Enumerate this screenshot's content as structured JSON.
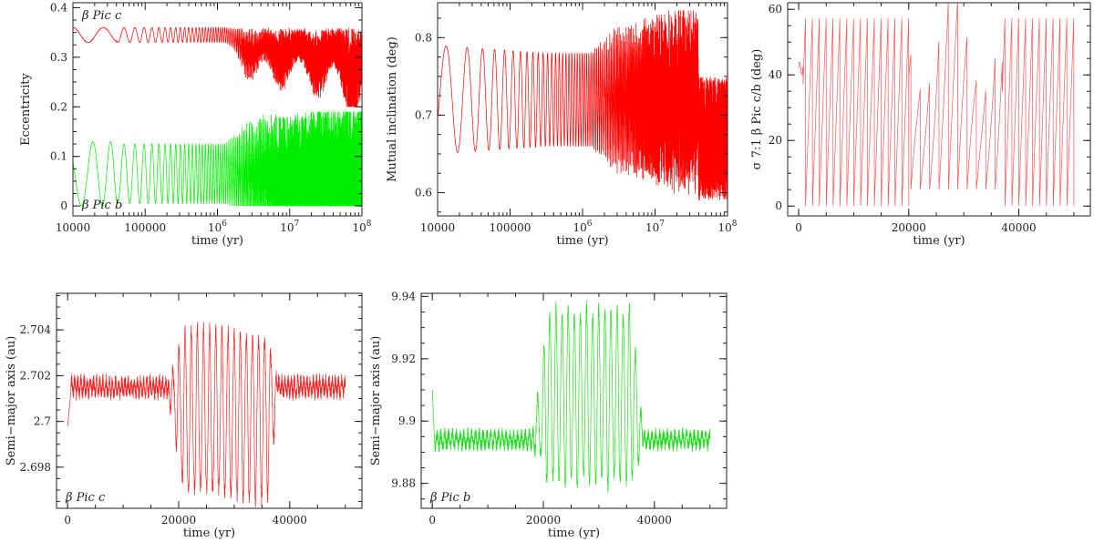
{
  "chart_data": [
    {
      "id": "ecc",
      "type": "line",
      "xscale": "log",
      "xlabel": "time (yr)",
      "ylabel": "Eccentricity",
      "xlim": [
        10000,
        100000000
      ],
      "ylim": [
        -0.02,
        0.41
      ],
      "xticks": [
        {
          "v": 10000,
          "label": "10000"
        },
        {
          "v": 100000,
          "label": "100000"
        },
        {
          "v": 1000000,
          "base": "10",
          "exp": "6"
        },
        {
          "v": 10000000,
          "base": "10",
          "exp": "7"
        },
        {
          "v": 100000000,
          "base": "10",
          "exp": "8"
        }
      ],
      "yticks": [
        {
          "v": 0,
          "label": "0"
        },
        {
          "v": 0.1,
          "label": "0.1"
        },
        {
          "v": 0.2,
          "label": "0.2"
        },
        {
          "v": 0.3,
          "label": "0.3"
        },
        {
          "v": 0.4,
          "label": "0.4"
        }
      ],
      "annotations": [
        {
          "text": "β  Pic  c",
          "pos": "top-left"
        },
        {
          "text": "β  Pic  b",
          "pos": "bottom-left"
        }
      ],
      "series": [
        {
          "color": "#ff0000",
          "model": "ecc_c"
        },
        {
          "color": "#00ee00",
          "model": "ecc_b"
        }
      ]
    },
    {
      "id": "inc",
      "type": "line",
      "xscale": "log",
      "xlabel": "time (yr)",
      "ylabel": "Mutual inclination (deg)",
      "xlim": [
        10000,
        100000000
      ],
      "ylim": [
        0.57,
        0.845
      ],
      "xticks": [
        {
          "v": 10000,
          "label": "10000"
        },
        {
          "v": 100000,
          "label": "100000"
        },
        {
          "v": 1000000,
          "base": "10",
          "exp": "6"
        },
        {
          "v": 10000000,
          "base": "10",
          "exp": "7"
        },
        {
          "v": 100000000,
          "base": "10",
          "exp": "8"
        }
      ],
      "yticks": [
        {
          "v": 0.6,
          "label": "0.6"
        },
        {
          "v": 0.7,
          "label": "0.7"
        },
        {
          "v": 0.8,
          "label": "0.8"
        }
      ],
      "annotations": [],
      "series": [
        {
          "color": "#ff0000",
          "model": "inc"
        }
      ]
    },
    {
      "id": "res",
      "type": "line",
      "xscale": "linear",
      "xlabel": "time (yr)",
      "ylabel": "σ 7:1  β  Pic c/b (deg)",
      "xlim": [
        -2000,
        53000
      ],
      "ylim": [
        -3,
        62
      ],
      "xticks": [
        {
          "v": 0,
          "label": "0"
        },
        {
          "v": 20000,
          "label": "20000"
        },
        {
          "v": 40000,
          "label": "40000"
        }
      ],
      "yticks": [
        {
          "v": 0,
          "label": "0"
        },
        {
          "v": 20,
          "label": "20"
        },
        {
          "v": 40,
          "label": "40"
        },
        {
          "v": 60,
          "label": "60"
        }
      ],
      "annotations": [],
      "series": [
        {
          "color": "#ff5555",
          "model": "res"
        }
      ]
    },
    {
      "id": "ac",
      "type": "line",
      "xscale": "linear",
      "xlabel": "time (yr)",
      "ylabel": "Semi−major axis (au)",
      "xlim": [
        -2000,
        53000
      ],
      "ylim": [
        2.6962,
        2.7056
      ],
      "xticks": [
        {
          "v": 0,
          "label": "0"
        },
        {
          "v": 20000,
          "label": "20000"
        },
        {
          "v": 40000,
          "label": "40000"
        }
      ],
      "yticks": [
        {
          "v": 2.698,
          "label": "2.698"
        },
        {
          "v": 2.7,
          "label": "2.7"
        },
        {
          "v": 2.702,
          "label": "2.702"
        },
        {
          "v": 2.704,
          "label": "2.704"
        }
      ],
      "annotations": [
        {
          "text": "β  Pic  c",
          "pos": "bottom-left"
        }
      ],
      "series": [
        {
          "color": "#ff2222",
          "model": "ac"
        }
      ]
    },
    {
      "id": "ab",
      "type": "line",
      "xscale": "linear",
      "xlabel": "time (yr)",
      "ylabel": "Semi−major axis (au)",
      "xlim": [
        -2000,
        53000
      ],
      "ylim": [
        9.872,
        9.941
      ],
      "xticks": [
        {
          "v": 0,
          "label": "0"
        },
        {
          "v": 20000,
          "label": "20000"
        },
        {
          "v": 40000,
          "label": "40000"
        }
      ],
      "yticks": [
        {
          "v": 9.88,
          "label": "9.88"
        },
        {
          "v": 9.9,
          "label": "9.9"
        },
        {
          "v": 9.92,
          "label": "9.92"
        },
        {
          "v": 9.94,
          "label": "9.94"
        }
      ],
      "annotations": [
        {
          "text": "β  Pic  b",
          "pos": "bottom-left"
        }
      ],
      "series": [
        {
          "color": "#22dd22",
          "model": "ab"
        }
      ]
    }
  ]
}
